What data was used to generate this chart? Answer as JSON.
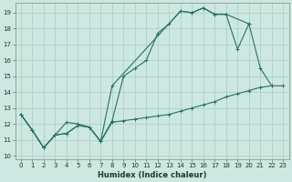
{
  "xlabel": "Humidex (Indice chaleur)",
  "bg_color": "#cce8e0",
  "grid_color": "#aaccc4",
  "line_color": "#2a7060",
  "xlim": [
    -0.5,
    23.5
  ],
  "ylim": [
    9.8,
    19.6
  ],
  "xticks": [
    0,
    1,
    2,
    3,
    4,
    5,
    6,
    7,
    8,
    9,
    10,
    11,
    12,
    13,
    14,
    15,
    16,
    17,
    18,
    19,
    20,
    21,
    22,
    23
  ],
  "yticks": [
    10,
    11,
    12,
    13,
    14,
    15,
    16,
    17,
    18,
    19
  ],
  "series1_x": [
    0,
    1,
    2,
    3,
    4,
    5,
    6,
    7,
    8,
    9,
    10,
    11,
    12,
    13,
    14,
    15,
    16,
    17,
    18,
    19,
    20,
    21,
    22,
    23
  ],
  "series1_y": [
    12.6,
    11.6,
    10.5,
    11.3,
    11.4,
    11.9,
    11.8,
    10.9,
    12.1,
    12.2,
    12.3,
    12.4,
    12.5,
    12.6,
    12.8,
    13.0,
    13.2,
    13.4,
    13.7,
    13.9,
    14.1,
    14.3,
    14.4,
    14.4
  ],
  "series2_x": [
    0,
    1,
    2,
    3,
    4,
    5,
    6,
    7,
    8,
    9,
    10,
    11,
    12,
    13,
    14,
    15,
    16,
    17,
    18,
    19,
    20,
    21,
    22,
    23
  ],
  "series2_y": [
    12.6,
    11.6,
    10.5,
    11.3,
    11.4,
    11.9,
    11.8,
    10.9,
    12.2,
    15.0,
    15.5,
    16.0,
    17.7,
    18.3,
    19.1,
    19.0,
    19.3,
    18.9,
    18.9,
    16.7,
    18.3,
    15.5,
    14.4,
    null
  ],
  "series3_x": [
    0,
    1,
    2,
    3,
    4,
    5,
    6,
    7,
    8,
    14,
    15,
    16,
    17,
    18,
    20
  ],
  "series3_y": [
    12.6,
    11.6,
    10.5,
    11.3,
    12.1,
    12.0,
    11.8,
    10.9,
    14.4,
    19.1,
    19.0,
    19.3,
    18.9,
    18.9,
    18.3
  ]
}
